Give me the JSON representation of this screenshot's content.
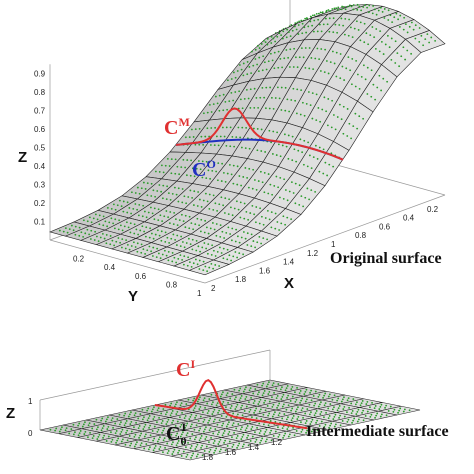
{
  "top": {
    "z_label": "Z",
    "y_label": "Y",
    "x_label": "X",
    "z_ticks": [
      "0.1",
      "0.2",
      "0.3",
      "0.4",
      "0.5",
      "0.6",
      "0.7",
      "0.8",
      "0.9"
    ],
    "y_ticks": [
      "0.2",
      "0.4",
      "0.6",
      "0.8",
      "1"
    ],
    "x_ticks": [
      "2",
      "1.8",
      "1.6",
      "1.4",
      "1.2",
      "1",
      "0.8",
      "0.6",
      "0.4",
      "0.2"
    ],
    "caption": "Original surface",
    "curve_m": {
      "base": "C",
      "sup": "M"
    },
    "curve_o": {
      "base": "C",
      "sup": "O"
    }
  },
  "bottom": {
    "z_label": "Z",
    "z_ticks": [
      "1",
      "0"
    ],
    "x_ticks": [
      "1.8",
      "1.6",
      "1.4",
      "1.2"
    ],
    "caption": "Intermediate surface",
    "curve_i": {
      "base": "C",
      "sup": "I"
    },
    "curve_0i": {
      "base": "C",
      "sub": "0",
      "sup": "I"
    }
  }
}
